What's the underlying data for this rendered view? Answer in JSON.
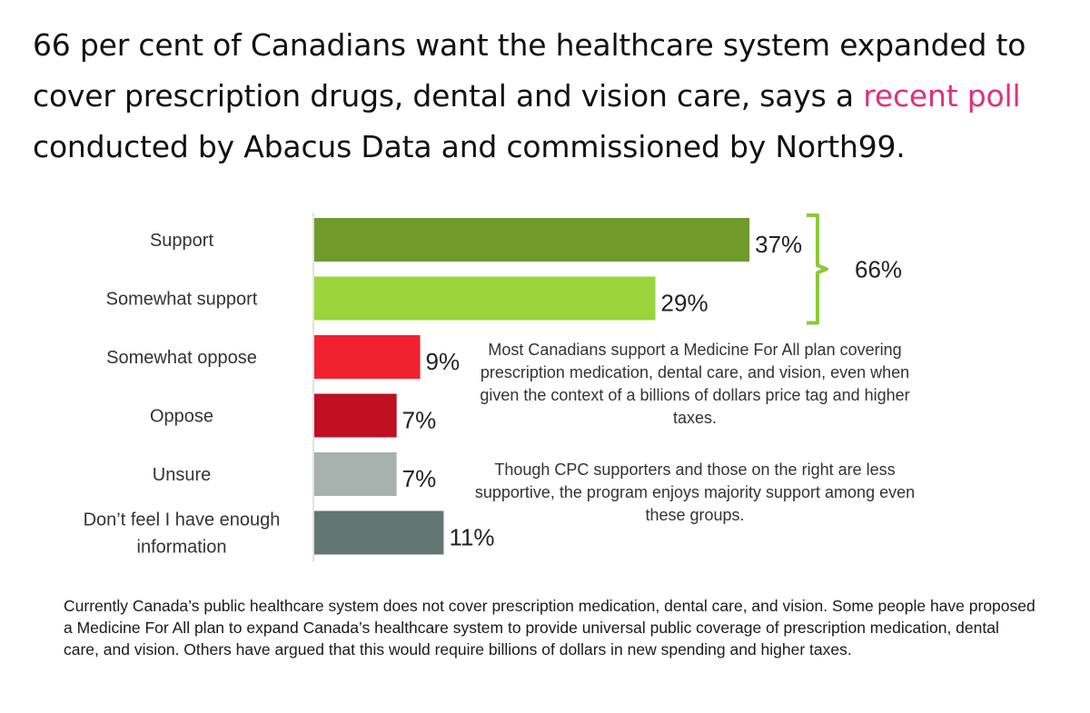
{
  "headline": {
    "before_link": "66 per cent of Canadians want the healthcare system expanded to cover prescription drugs, dental and vision care, says a ",
    "link_text": "recent poll",
    "after_link": " conducted by Abacus Data and commissioned by North99."
  },
  "chart_data": {
    "type": "bar",
    "orientation": "horizontal",
    "categories": [
      "Support",
      "Somewhat support",
      "Somewhat oppose",
      "Oppose",
      "Unsure",
      "Don’t feel I have enough information"
    ],
    "category_lines": [
      [
        "Support"
      ],
      [
        "Somewhat support"
      ],
      [
        "Somewhat oppose"
      ],
      [
        "Oppose"
      ],
      [
        "Unsure"
      ],
      [
        "Don’t feel I have enough",
        "information"
      ]
    ],
    "values": [
      37,
      29,
      9,
      7,
      7,
      11
    ],
    "value_labels": [
      "37%",
      "29%",
      "9%",
      "7%",
      "7%",
      "11%"
    ],
    "colors": [
      "#6f9a2c",
      "#99d43c",
      "#f0202f",
      "#bf0f20",
      "#a7b1ae",
      "#627672"
    ],
    "bracket": {
      "label": "66%",
      "covers": [
        "Support",
        "Somewhat support"
      ],
      "color": "#8cc83a"
    },
    "grid": false,
    "legend": "none",
    "title": "",
    "xlabel": "",
    "ylabel": ""
  },
  "notes": [
    "Most Canadians support a Medicine For All plan covering prescription medication, dental care, and vision, even when given the context of a billions of dollars price tag and higher taxes.",
    "Though CPC supporters and those on the right are less supportive, the program enjoys majority support among even these groups."
  ],
  "footnote": "Currently Canada’s public healthcare system does not cover prescription medication, dental care, and vision. Some people have proposed a Medicine For All plan to expand Canada’s healthcare system to provide universal public coverage of prescription medication, dental care, and vision. Others have argued that this would require billions of dollars in new spending and higher taxes."
}
